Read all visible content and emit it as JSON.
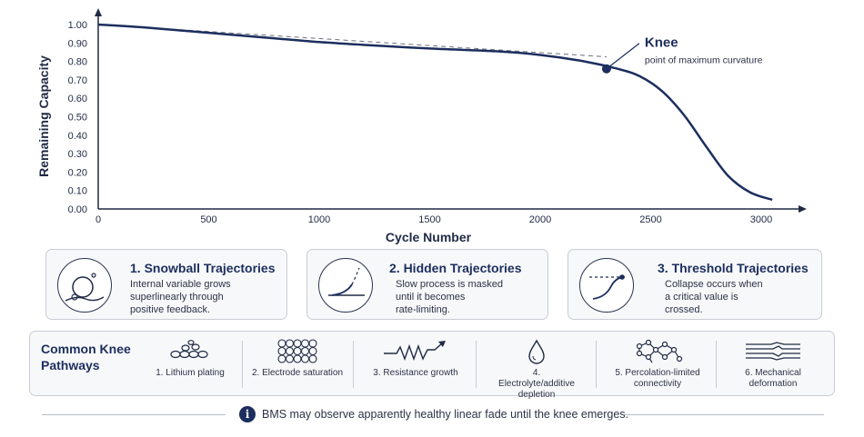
{
  "chart_data": {
    "type": "line",
    "xlabel": "Cycle Number",
    "ylabel": "Remaining Capacity",
    "xlim": [
      0,
      3100
    ],
    "ylim": [
      0,
      1.0
    ],
    "x_ticks": [
      "0",
      "500",
      "1000",
      "1500",
      "2000",
      "2500",
      "3000"
    ],
    "y_ticks": [
      "0.00",
      "0.10",
      "0.20",
      "0.30",
      "0.40",
      "0.50",
      "0.60",
      "0.70",
      "0.80",
      "0.90",
      "1.00"
    ],
    "series": [
      {
        "x": [
          0,
          200,
          500,
          800,
          1000,
          1200,
          1500,
          1800,
          2000,
          2200,
          2350,
          2450,
          2550,
          2650,
          2750,
          2850,
          2950,
          3050
        ],
        "y": [
          1.0,
          0.985,
          0.955,
          0.925,
          0.905,
          0.89,
          0.87,
          0.855,
          0.835,
          0.8,
          0.76,
          0.72,
          0.64,
          0.51,
          0.34,
          0.18,
          0.09,
          0.05
        ]
      }
    ],
    "reference_line": {
      "x": [
        0,
        2300
      ],
      "y": [
        1.0,
        0.825
      ]
    },
    "annotation": {
      "x": 2300,
      "y": 0.76,
      "title": "Knee",
      "text": "point of maximum curvature"
    }
  },
  "cards": [
    {
      "title": "1. Snowball Trajectories",
      "lines": [
        "Internal variable grows",
        "superlinearly through",
        "positive feedback."
      ],
      "icon": "snowball-icon"
    },
    {
      "title": "2. Hidden Trajectories",
      "lines": [
        "Slow process is masked",
        "until it becomes",
        "rate-limiting."
      ],
      "icon": "hidden-curve-icon"
    },
    {
      "title": "3. Threshold Trajectories",
      "lines": [
        "Collapse occurs when",
        "a critical value is",
        "crossed."
      ],
      "icon": "threshold-curve-icon"
    }
  ],
  "pathways": {
    "title": "Common Knee Pathways",
    "items": [
      {
        "label": "1. Lithium plating",
        "icon": "lithium-plating-icon"
      },
      {
        "label": "2. Electrode saturation",
        "icon": "electrode-saturation-icon"
      },
      {
        "label": "3. Resistance growth",
        "icon": "resistance-growth-icon"
      },
      {
        "label": "4. Electrolyte/additive depletion",
        "icon": "droplet-icon"
      },
      {
        "label": "5. Percolation-limited connectivity",
        "icon": "network-icon"
      },
      {
        "label": "6. Mechanical deformation",
        "icon": "deformation-icon"
      }
    ]
  },
  "footer": {
    "icon": "info-icon",
    "glyph": "i",
    "text": "BMS may observe apparently healthy linear fade until the knee emerges."
  }
}
